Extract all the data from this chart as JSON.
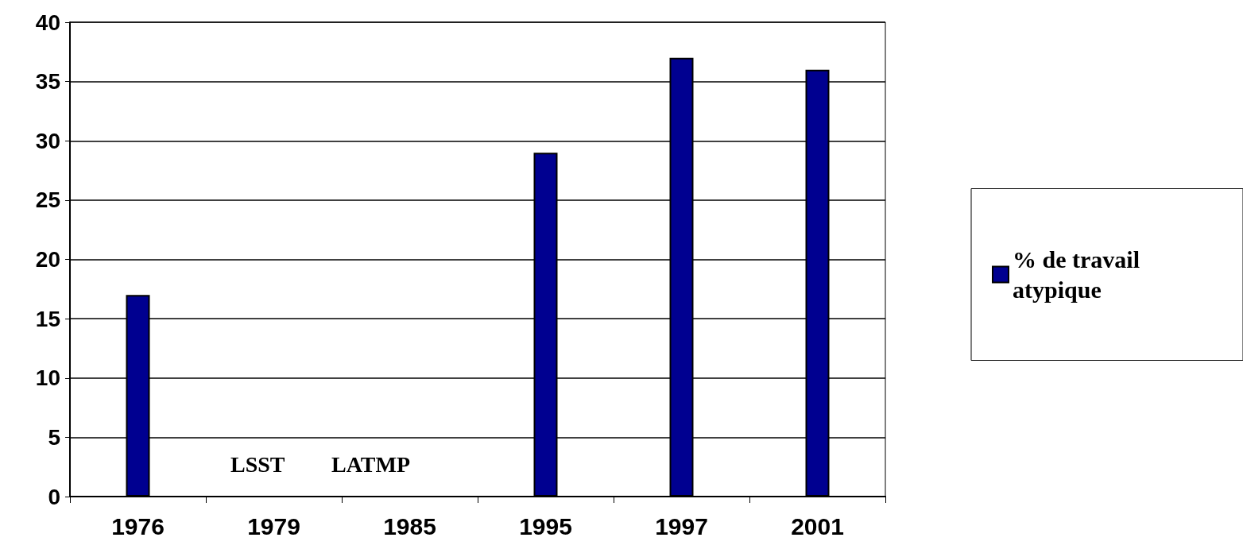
{
  "chart_data": {
    "type": "bar",
    "categories": [
      "1976",
      "1979",
      "1985",
      "1995",
      "1997",
      "2001"
    ],
    "series": [
      {
        "name": "% de travail atypique",
        "color": "#000090",
        "values": [
          17,
          null,
          null,
          29,
          37,
          36
        ]
      }
    ],
    "ylim": [
      0,
      40
    ],
    "yticks": [
      0,
      5,
      10,
      15,
      20,
      25,
      30,
      35,
      40
    ],
    "grid": "y",
    "legend": "right",
    "annotations": [
      "LSST",
      "LATMP"
    ]
  }
}
